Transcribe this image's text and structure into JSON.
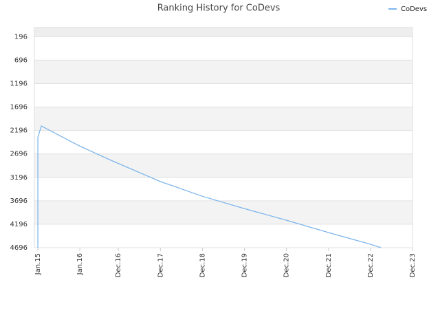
{
  "chart_data": {
    "type": "line",
    "title": "Ranking History for CoDevs",
    "x": [
      "2015-01",
      "2015-01",
      "2015-02",
      "2015-03",
      "2016-01",
      "2016-10",
      "2017-12",
      "2018-12",
      "2019-12",
      "2020-12",
      "2021-12",
      "2022-12",
      "2023-03"
    ],
    "series": [
      {
        "name": "CoDevs",
        "color": "#7cb5ec",
        "values": [
          4696,
          2340,
          2100,
          2140,
          2530,
          2836,
          3285,
          3600,
          3863,
          4110,
          4374,
          4622,
          4696
        ]
      }
    ],
    "xlim": [
      "2014-12",
      "2023-12"
    ],
    "xticks": [
      {
        "value": "2015-01",
        "label": "Jan.15"
      },
      {
        "value": "2016-01",
        "label": "Jan.16"
      },
      {
        "value": "2016-12",
        "label": "Dec.16"
      },
      {
        "value": "2017-12",
        "label": "Dec.17"
      },
      {
        "value": "2018-12",
        "label": "Dec.18"
      },
      {
        "value": "2019-12",
        "label": "Dec.19"
      },
      {
        "value": "2020-12",
        "label": "Dec.20"
      },
      {
        "value": "2021-12",
        "label": "Dec.21"
      },
      {
        "value": "2022-12",
        "label": "Dec.22"
      },
      {
        "value": "2023-12",
        "label": "Dec.23"
      }
    ],
    "ylim": [
      4696,
      0
    ],
    "yticks": [
      196,
      696,
      1196,
      1696,
      2196,
      2696,
      3196,
      3696,
      4196,
      4696
    ],
    "grid": true,
    "legend": "top-right"
  }
}
